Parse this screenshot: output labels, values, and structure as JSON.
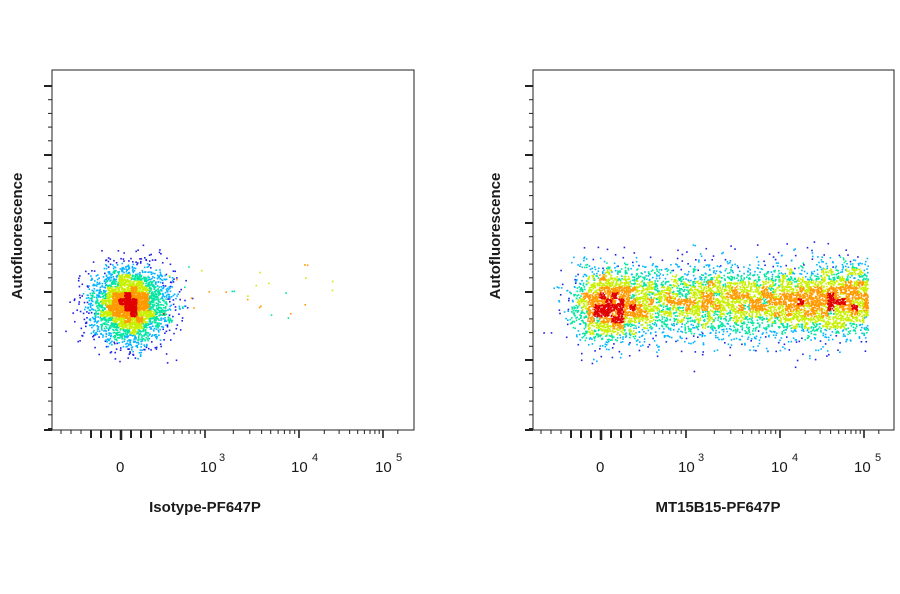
{
  "chart_data": [
    {
      "type": "scatter",
      "subtype": "flow-cytometry-density-dot-plot",
      "title": "",
      "xlabel": "Isotype-PF647P",
      "ylabel": "Autofluorescence",
      "x_scale": "biexponential",
      "x_tick_labels": [
        {
          "base": "0",
          "exp": ""
        },
        {
          "base": "10",
          "exp": "3"
        },
        {
          "base": "10",
          "exp": "4"
        },
        {
          "base": "10",
          "exp": "5"
        }
      ],
      "xlim": [
        -1000,
        150000
      ],
      "y_scale": "linear",
      "y_tick_labels": [],
      "grid": false,
      "color_scale": [
        "#1f1fe6",
        "#00b4ff",
        "#00e6a0",
        "#c8f000",
        "#ff9a00",
        "#e00000"
      ],
      "populations": [
        {
          "name": "",
          "x_center": 80,
          "x_spread": 180,
          "y_center": 0.35,
          "y_spread": 0.05,
          "events": 3500,
          "peak": "red"
        },
        {
          "name": "",
          "x_min": 300,
          "x_max": 30000,
          "events": 30,
          "sparse": true
        }
      ]
    },
    {
      "type": "scatter",
      "subtype": "flow-cytometry-density-dot-plot",
      "title": "",
      "xlabel": "MT15B15-PF647P",
      "ylabel": "Autofluorescence",
      "x_scale": "biexponential",
      "x_tick_labels": [
        {
          "base": "0",
          "exp": ""
        },
        {
          "base": "10",
          "exp": "3"
        },
        {
          "base": "10",
          "exp": "4"
        },
        {
          "base": "10",
          "exp": "5"
        }
      ],
      "xlim": [
        -1000,
        150000
      ],
      "y_scale": "linear",
      "y_tick_labels": [],
      "grid": false,
      "color_scale": [
        "#1f1fe6",
        "#00b4ff",
        "#00e6a0",
        "#c8f000",
        "#ff9a00",
        "#e00000"
      ],
      "populations": [
        {
          "name": "",
          "x_center": 80,
          "x_spread": 180,
          "y_center": 0.35,
          "y_spread": 0.05,
          "events": 2000,
          "peak": "red"
        },
        {
          "name": "",
          "x_min": 300,
          "x_max": 110000,
          "y_center": 0.36,
          "y_spread": 0.045,
          "events": 5000,
          "peak": "green"
        }
      ]
    }
  ]
}
